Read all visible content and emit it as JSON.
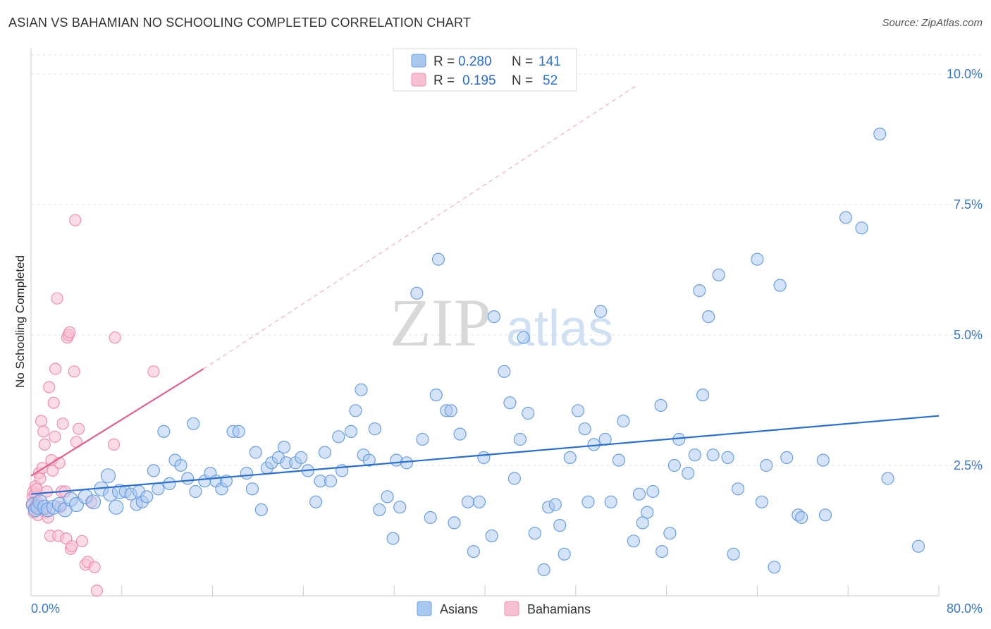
{
  "title": "ASIAN VS BAHAMIAN NO SCHOOLING COMPLETED CORRELATION CHART",
  "source": "Source: ZipAtlas.com",
  "watermark": {
    "zip": "ZIP",
    "atlas": "atlas"
  },
  "colors": {
    "asians_fill": "#a9c8f0",
    "asians_stroke": "#6a9fe0",
    "asians_line": "#2a6fd0",
    "bahamians_fill": "#f7c0d2",
    "bahamians_stroke": "#ee8fb0",
    "bahamians_line": "#e0608e",
    "value_text": "#2a6fd0",
    "grid": "#e2e2e2"
  },
  "legend": {
    "rows": [
      {
        "r_label": "R =",
        "r_value": "0.280",
        "n_label": "N =",
        "n_value": "141"
      },
      {
        "r_label": "R =",
        "r_value": "0.195",
        "n_label": "N =",
        "n_value": "52"
      }
    ]
  },
  "chart_data": {
    "type": "scatter",
    "title": "ASIAN VS BAHAMIAN NO SCHOOLING COMPLETED CORRELATION CHART",
    "xlabel": "",
    "ylabel": "No Schooling Completed",
    "xlim": [
      0,
      80
    ],
    "ylim": [
      0,
      10.5
    ],
    "x_tick_labels": [
      "0.0%",
      "80.0%"
    ],
    "y_tick_labels": [
      "2.5%",
      "5.0%",
      "7.5%",
      "10.0%"
    ],
    "y_ticks": [
      2.5,
      5.0,
      7.5,
      10.0
    ],
    "grid": true,
    "legend_position": "top-center",
    "series": [
      {
        "name": "Asians",
        "r": 0.28,
        "n": 141,
        "trend": {
          "x": [
            0,
            80
          ],
          "y": [
            1.95,
            3.45
          ]
        },
        "points": [
          [
            0.2,
            1.75
          ],
          [
            0.4,
            1.65
          ],
          [
            0.6,
            1.7
          ],
          [
            0.8,
            1.8
          ],
          [
            1.2,
            1.7
          ],
          [
            1.5,
            1.65
          ],
          [
            2.0,
            1.7
          ],
          [
            2.5,
            1.75
          ],
          [
            3.0,
            1.65
          ],
          [
            3.5,
            1.85
          ],
          [
            4.0,
            1.75
          ],
          [
            4.8,
            1.9
          ],
          [
            5.5,
            1.8
          ],
          [
            6.2,
            2.05
          ],
          [
            6.8,
            2.3
          ],
          [
            7.0,
            1.95
          ],
          [
            7.5,
            1.7
          ],
          [
            7.8,
            2.0
          ],
          [
            8.3,
            2.0
          ],
          [
            8.8,
            1.95
          ],
          [
            9.5,
            2.0
          ],
          [
            9.3,
            1.75
          ],
          [
            9.8,
            1.8
          ],
          [
            10.2,
            1.9
          ],
          [
            10.8,
            2.4
          ],
          [
            11.2,
            2.05
          ],
          [
            11.7,
            3.15
          ],
          [
            12.2,
            2.15
          ],
          [
            12.7,
            2.6
          ],
          [
            13.2,
            2.5
          ],
          [
            13.8,
            2.25
          ],
          [
            14.5,
            2.0
          ],
          [
            14.3,
            3.3
          ],
          [
            15.3,
            2.2
          ],
          [
            15.8,
            2.35
          ],
          [
            16.3,
            2.2
          ],
          [
            16.8,
            2.05
          ],
          [
            17.2,
            2.2
          ],
          [
            17.8,
            3.15
          ],
          [
            18.3,
            3.15
          ],
          [
            19.0,
            2.35
          ],
          [
            19.5,
            2.05
          ],
          [
            19.8,
            2.75
          ],
          [
            20.3,
            1.65
          ],
          [
            20.8,
            2.45
          ],
          [
            21.2,
            2.55
          ],
          [
            21.8,
            2.65
          ],
          [
            22.3,
            2.85
          ],
          [
            22.5,
            2.55
          ],
          [
            23.3,
            2.55
          ],
          [
            23.8,
            2.65
          ],
          [
            24.4,
            2.4
          ],
          [
            25.1,
            1.8
          ],
          [
            25.5,
            2.2
          ],
          [
            25.9,
            2.75
          ],
          [
            26.4,
            2.2
          ],
          [
            27.1,
            3.05
          ],
          [
            27.4,
            2.4
          ],
          [
            28.2,
            3.15
          ],
          [
            28.6,
            3.55
          ],
          [
            29.1,
            3.95
          ],
          [
            29.3,
            2.7
          ],
          [
            29.8,
            2.6
          ],
          [
            30.3,
            3.2
          ],
          [
            30.7,
            1.65
          ],
          [
            31.4,
            1.9
          ],
          [
            31.9,
            1.1
          ],
          [
            32.2,
            2.6
          ],
          [
            32.5,
            1.7
          ],
          [
            33.1,
            2.55
          ],
          [
            34.0,
            5.8
          ],
          [
            34.5,
            3.0
          ],
          [
            35.2,
            1.5
          ],
          [
            35.7,
            3.85
          ],
          [
            35.9,
            6.45
          ],
          [
            36.6,
            3.55
          ],
          [
            37.0,
            3.55
          ],
          [
            37.3,
            1.4
          ],
          [
            37.8,
            3.1
          ],
          [
            38.5,
            1.8
          ],
          [
            39.0,
            0.85
          ],
          [
            39.5,
            1.8
          ],
          [
            39.9,
            2.65
          ],
          [
            40.6,
            1.15
          ],
          [
            40.8,
            5.35
          ],
          [
            41.7,
            4.3
          ],
          [
            42.2,
            3.7
          ],
          [
            42.6,
            2.25
          ],
          [
            43.1,
            3.0
          ],
          [
            43.4,
            4.95
          ],
          [
            43.8,
            3.5
          ],
          [
            44.4,
            1.2
          ],
          [
            45.2,
            0.5
          ],
          [
            45.6,
            1.7
          ],
          [
            46.2,
            1.75
          ],
          [
            46.6,
            1.35
          ],
          [
            47.0,
            0.8
          ],
          [
            47.5,
            2.65
          ],
          [
            48.2,
            3.55
          ],
          [
            48.8,
            3.2
          ],
          [
            49.1,
            1.8
          ],
          [
            49.6,
            2.9
          ],
          [
            50.2,
            5.45
          ],
          [
            50.6,
            3.0
          ],
          [
            51.1,
            1.8
          ],
          [
            51.8,
            2.6
          ],
          [
            52.2,
            3.35
          ],
          [
            53.1,
            1.05
          ],
          [
            53.6,
            1.95
          ],
          [
            53.9,
            1.4
          ],
          [
            54.3,
            1.6
          ],
          [
            54.8,
            2.0
          ],
          [
            55.5,
            3.65
          ],
          [
            55.6,
            0.85
          ],
          [
            56.3,
            1.2
          ],
          [
            56.7,
            2.5
          ],
          [
            57.1,
            3.0
          ],
          [
            57.9,
            2.35
          ],
          [
            58.5,
            2.7
          ],
          [
            58.9,
            5.85
          ],
          [
            59.2,
            3.85
          ],
          [
            59.7,
            5.35
          ],
          [
            60.1,
            2.7
          ],
          [
            60.6,
            6.15
          ],
          [
            61.4,
            2.65
          ],
          [
            61.9,
            0.8
          ],
          [
            62.3,
            2.05
          ],
          [
            64.0,
            6.45
          ],
          [
            64.4,
            1.8
          ],
          [
            64.8,
            2.5
          ],
          [
            65.5,
            0.55
          ],
          [
            66.0,
            5.95
          ],
          [
            66.6,
            2.65
          ],
          [
            67.6,
            1.55
          ],
          [
            67.9,
            1.5
          ],
          [
            70.0,
            1.55
          ],
          [
            69.8,
            2.6
          ],
          [
            71.8,
            7.25
          ],
          [
            73.2,
            7.05
          ],
          [
            74.8,
            8.85
          ],
          [
            75.5,
            2.25
          ],
          [
            78.2,
            0.95
          ]
        ]
      },
      {
        "name": "Bahamians",
        "r": 0.195,
        "n": 52,
        "trend": {
          "x": [
            0,
            15.2
          ],
          "y": [
            2.3,
            4.35
          ]
        },
        "trend_extended": {
          "x": [
            15.2,
            53.5
          ],
          "y": [
            4.35,
            9.8
          ]
        },
        "points": [
          [
            0.1,
            1.75
          ],
          [
            0.15,
            1.9
          ],
          [
            0.2,
            2.0
          ],
          [
            0.25,
            1.6
          ],
          [
            0.3,
            1.7
          ],
          [
            0.35,
            1.95
          ],
          [
            0.4,
            2.1
          ],
          [
            0.5,
            2.05
          ],
          [
            0.55,
            1.8
          ],
          [
            0.6,
            1.55
          ],
          [
            0.7,
            2.35
          ],
          [
            0.8,
            2.25
          ],
          [
            0.9,
            3.35
          ],
          [
            1.0,
            2.45
          ],
          [
            1.1,
            3.15
          ],
          [
            1.2,
            2.9
          ],
          [
            1.3,
            1.6
          ],
          [
            1.4,
            2.0
          ],
          [
            1.5,
            1.5
          ],
          [
            1.6,
            4.0
          ],
          [
            1.7,
            1.15
          ],
          [
            1.8,
            2.6
          ],
          [
            1.9,
            2.4
          ],
          [
            2.0,
            3.7
          ],
          [
            2.1,
            3.05
          ],
          [
            2.15,
            4.35
          ],
          [
            2.3,
            5.7
          ],
          [
            2.4,
            1.15
          ],
          [
            2.5,
            2.55
          ],
          [
            2.6,
            1.7
          ],
          [
            2.7,
            2.0
          ],
          [
            2.8,
            3.3
          ],
          [
            3.0,
            2.0
          ],
          [
            3.1,
            1.1
          ],
          [
            3.2,
            4.95
          ],
          [
            3.3,
            5.0
          ],
          [
            3.4,
            5.05
          ],
          [
            3.5,
            0.9
          ],
          [
            3.6,
            0.95
          ],
          [
            3.8,
            4.3
          ],
          [
            3.9,
            7.2
          ],
          [
            4.0,
            2.95
          ],
          [
            4.2,
            3.2
          ],
          [
            4.5,
            1.05
          ],
          [
            4.8,
            0.6
          ],
          [
            5.0,
            0.65
          ],
          [
            5.3,
            1.8
          ],
          [
            5.6,
            0.55
          ],
          [
            5.8,
            0.1
          ],
          [
            7.3,
            2.9
          ],
          [
            7.4,
            4.95
          ],
          [
            10.8,
            4.3
          ]
        ]
      }
    ]
  },
  "bottom_legend": [
    {
      "label": "Asians"
    },
    {
      "label": "Bahamians"
    }
  ]
}
